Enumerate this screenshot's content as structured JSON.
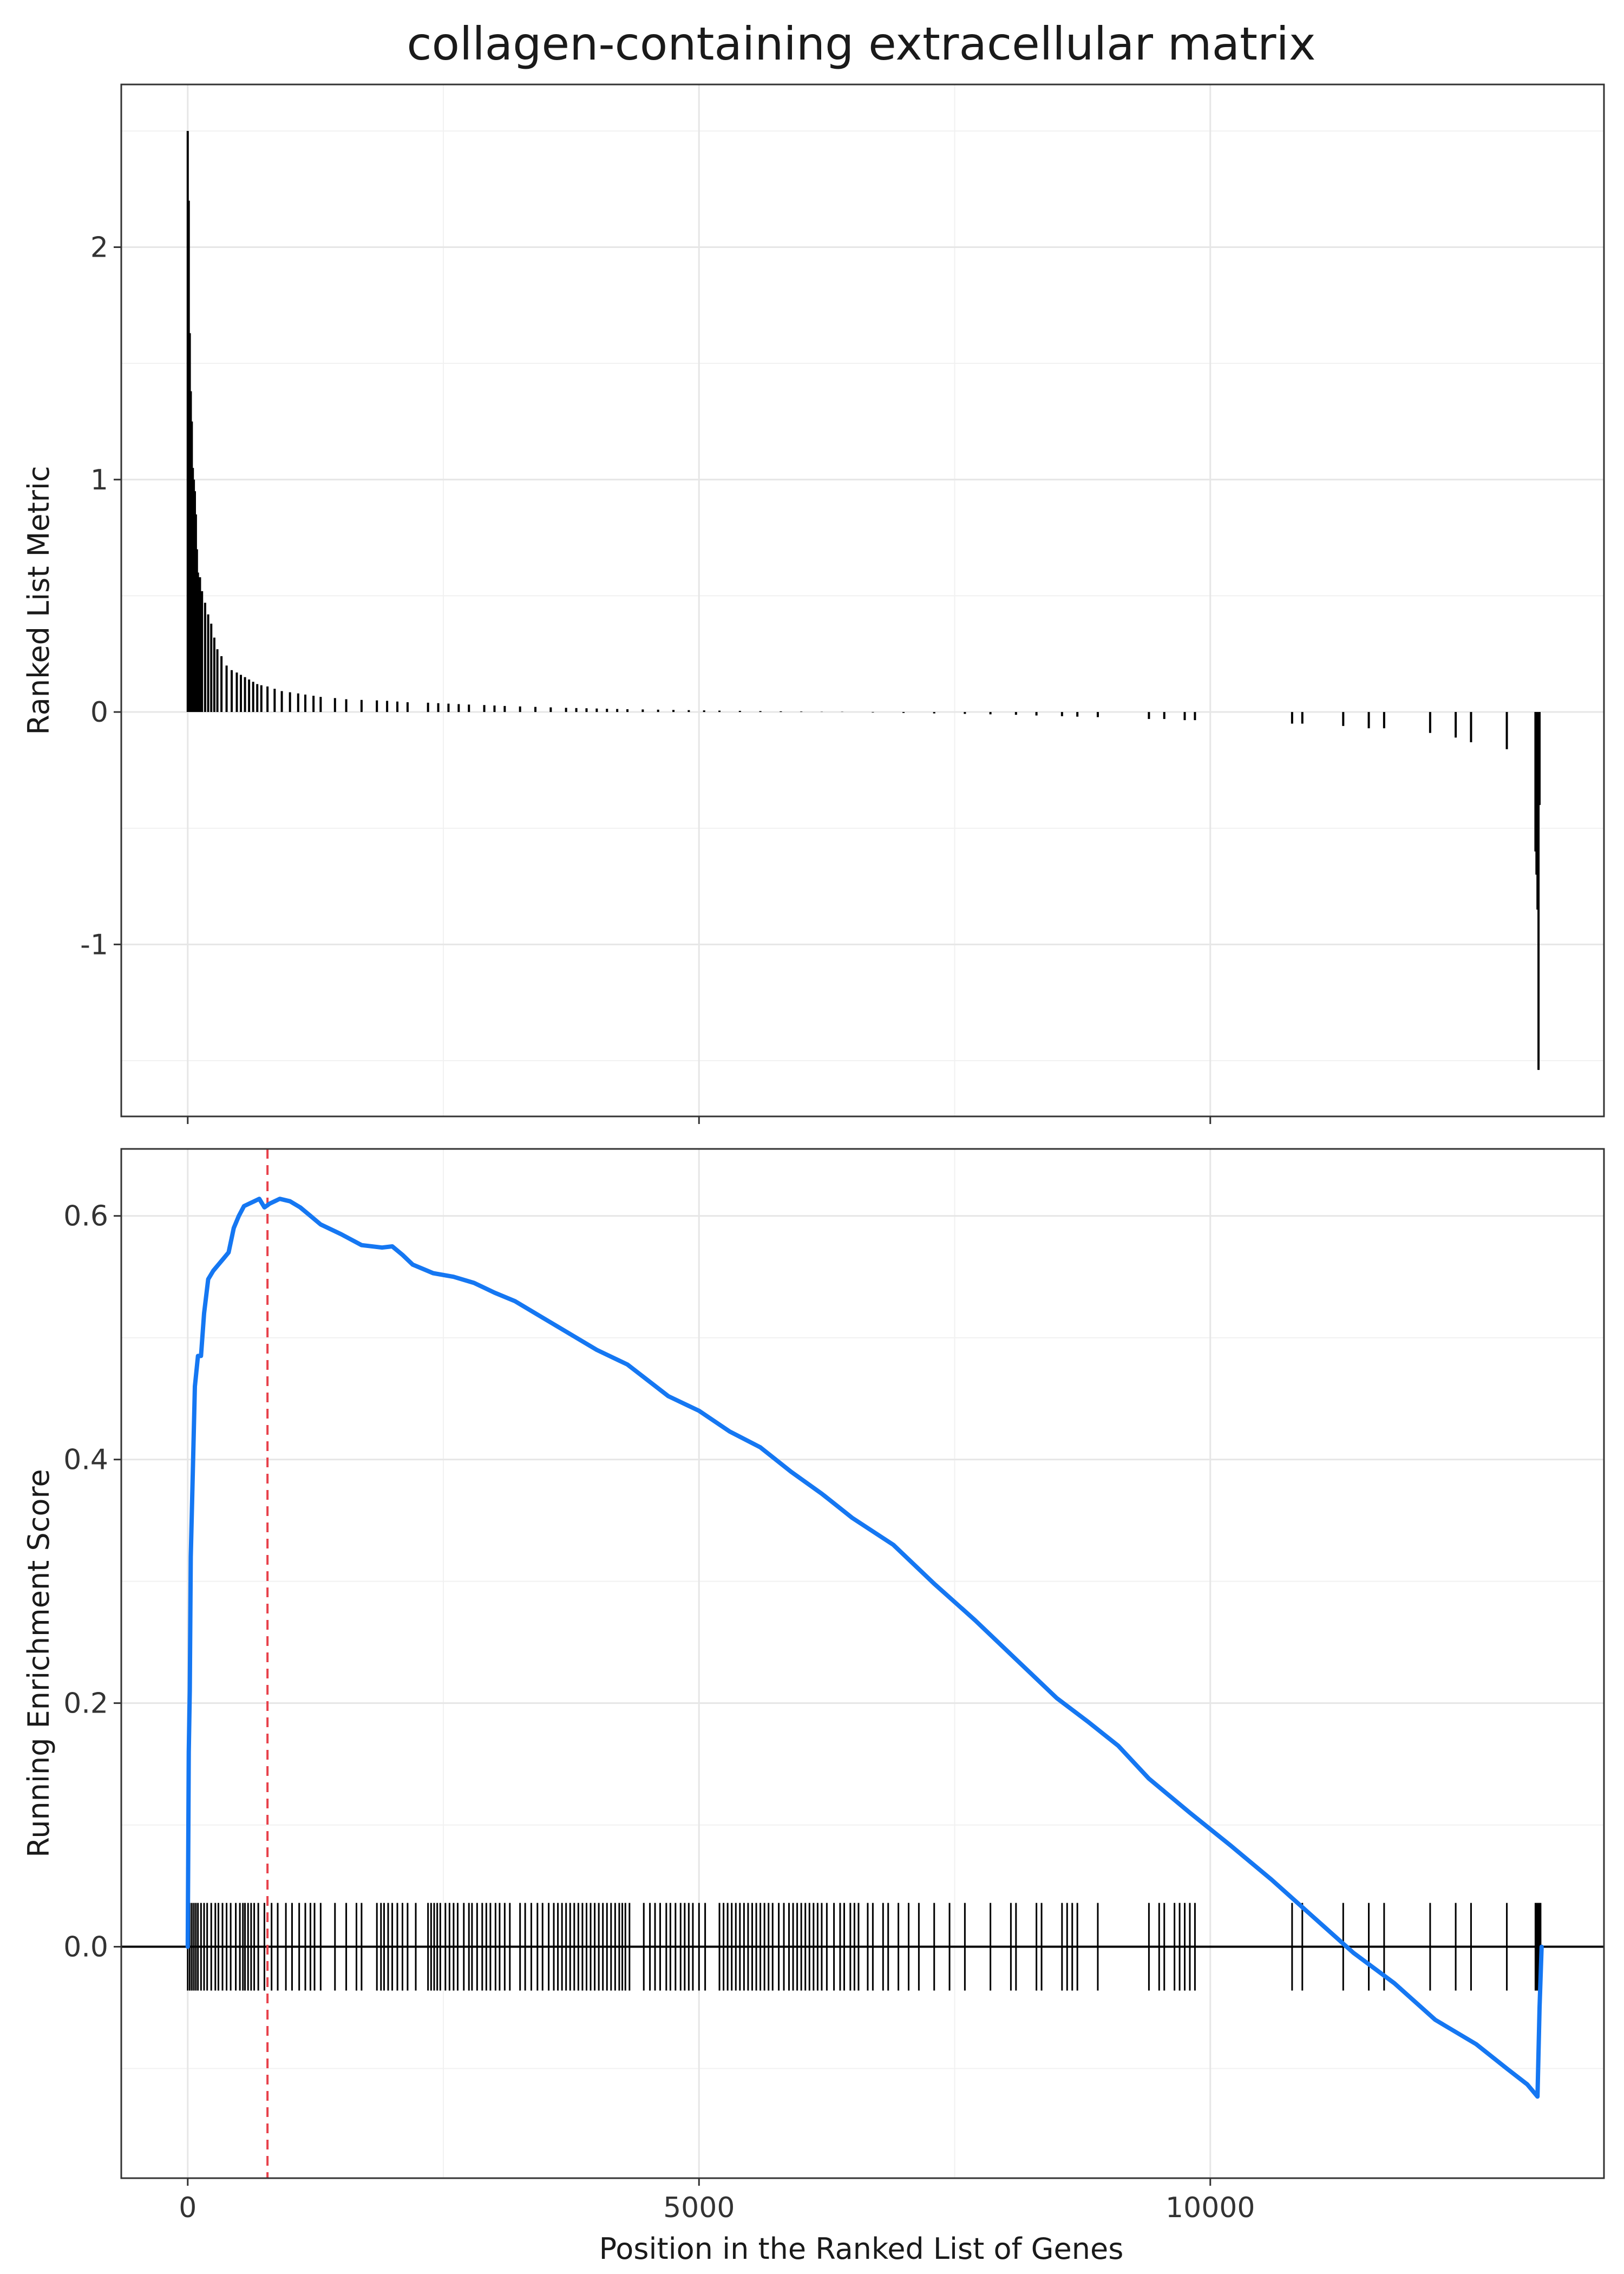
{
  "chart_data": [
    {
      "type": "bar",
      "title": "collagen-containing extracellular matrix",
      "ylabel": "Ranked List Metric",
      "xlabel": "",
      "xlim": [
        -650,
        13850
      ],
      "ylim": [
        -1.74,
        2.7
      ],
      "yticks": [
        -1,
        0,
        1,
        2
      ],
      "grid": true,
      "bar_color": "#000000",
      "description_of_series": "ranked list metric at selected gene positions",
      "x": [
        0,
        10,
        20,
        30,
        40,
        50,
        60,
        70,
        80,
        90,
        100,
        120,
        140,
        170,
        200,
        230,
        260,
        290,
        330,
        380,
        430,
        480,
        520,
        560,
        600,
        640,
        680,
        720,
        780,
        850,
        920,
        1000,
        1080,
        1150,
        1230,
        1300,
        1440,
        1550,
        1700,
        1850,
        1950,
        2050,
        2150,
        2350,
        2450,
        2550,
        2650,
        2750,
        2900,
        3000,
        3100,
        3250,
        3400,
        3550,
        3700,
        3800,
        3900,
        4000,
        4100,
        4200,
        4300,
        4450,
        4600,
        4750,
        4900,
        5050,
        5200,
        5400,
        5600,
        5800,
        6000,
        6200,
        6400,
        6700,
        7000,
        7300,
        7600,
        7850,
        8100,
        8300,
        8550,
        8700,
        8900,
        9400,
        9550,
        9750,
        9850,
        10800,
        10900,
        11300,
        11550,
        11700,
        12150,
        12400,
        12550,
        12900,
        13180,
        13190,
        13200,
        13210,
        13220
      ],
      "values": [
        2.5,
        2.2,
        1.63,
        1.38,
        1.25,
        1.05,
        1.0,
        0.95,
        0.85,
        0.7,
        0.6,
        0.58,
        0.52,
        0.47,
        0.42,
        0.38,
        0.32,
        0.27,
        0.24,
        0.2,
        0.18,
        0.17,
        0.16,
        0.15,
        0.14,
        0.13,
        0.12,
        0.115,
        0.11,
        0.1,
        0.09,
        0.085,
        0.08,
        0.075,
        0.07,
        0.065,
        0.06,
        0.055,
        0.052,
        0.05,
        0.048,
        0.045,
        0.042,
        0.04,
        0.038,
        0.036,
        0.034,
        0.032,
        0.03,
        0.028,
        0.026,
        0.024,
        0.022,
        0.02,
        0.018,
        0.017,
        0.016,
        0.015,
        0.014,
        0.013,
        0.012,
        0.011,
        0.01,
        0.009,
        0.008,
        0.007,
        0.006,
        0.005,
        0.004,
        0.003,
        0.002,
        0.001,
        0.001,
        -0.002,
        -0.004,
        -0.006,
        -0.008,
        -0.01,
        -0.012,
        -0.015,
        -0.018,
        -0.02,
        -0.022,
        -0.03,
        -0.03,
        -0.035,
        -0.035,
        -0.05,
        -0.05,
        -0.06,
        -0.07,
        -0.07,
        -0.09,
        -0.11,
        -0.13,
        -0.16,
        -0.6,
        -0.7,
        -0.85,
        -1.54,
        -0.4
      ]
    },
    {
      "type": "line",
      "title": "",
      "xlabel": "Position in the Ranked List of Genes",
      "ylabel": "Running Enrichment Score",
      "xlim": [
        -650,
        13850
      ],
      "ylim": [
        -0.19,
        0.655
      ],
      "xticks": [
        0,
        5000,
        10000
      ],
      "yticks": [
        0.0,
        0.2,
        0.4,
        0.6
      ],
      "grid": true,
      "line_color": "#1577f2",
      "peak_line_color": "#e8404a",
      "zero_line": true,
      "series": [
        {
          "x": [
            0,
            10,
            20,
            30,
            50,
            70,
            100,
            130,
            160,
            200,
            250,
            300,
            350,
            400,
            450,
            500,
            550,
            600,
            650,
            700,
            750,
            800,
            900,
            1000,
            1100,
            1200,
            1300,
            1500,
            1700,
            1900,
            2000,
            2100,
            2200,
            2400,
            2600,
            2800,
            3000,
            3200,
            3400,
            3600,
            3800,
            4000,
            4300,
            4500,
            4700,
            5000,
            5300,
            5600,
            5900,
            6200,
            6500,
            6900,
            7300,
            7700,
            8100,
            8500,
            8800,
            9100,
            9400,
            9800,
            10200,
            10600,
            11000,
            11400,
            11800,
            12200,
            12400,
            12600,
            12900,
            13100,
            13200,
            13220,
            13240
          ],
          "values": [
            0.0,
            0.16,
            0.21,
            0.32,
            0.39,
            0.46,
            0.485,
            0.485,
            0.52,
            0.548,
            0.555,
            0.56,
            0.565,
            0.57,
            0.59,
            0.6,
            0.608,
            0.61,
            0.612,
            0.614,
            0.607,
            0.61,
            0.614,
            0.612,
            0.607,
            0.6,
            0.593,
            0.585,
            0.576,
            0.574,
            0.575,
            0.568,
            0.56,
            0.553,
            0.55,
            0.545,
            0.537,
            0.53,
            0.52,
            0.51,
            0.5,
            0.49,
            0.478,
            0.465,
            0.452,
            0.44,
            0.423,
            0.41,
            0.39,
            0.372,
            0.352,
            0.33,
            0.298,
            0.268,
            0.236,
            0.204,
            0.185,
            0.165,
            0.138,
            0.11,
            0.083,
            0.055,
            0.025,
            -0.005,
            -0.03,
            -0.06,
            -0.07,
            -0.08,
            -0.1,
            -0.113,
            -0.123,
            -0.05,
            0.0
          ]
        }
      ],
      "peak_x": 780,
      "hit_positions": [
        0,
        20,
        40,
        60,
        80,
        100,
        130,
        160,
        190,
        230,
        270,
        300,
        340,
        380,
        420,
        470,
        510,
        540,
        560,
        590,
        620,
        650,
        690,
        750,
        820,
        880,
        960,
        1020,
        1090,
        1150,
        1200,
        1240,
        1300,
        1440,
        1550,
        1650,
        1700,
        1850,
        1890,
        1920,
        1960,
        2000,
        2050,
        2100,
        2150,
        2230,
        2350,
        2380,
        2410,
        2440,
        2470,
        2520,
        2560,
        2600,
        2640,
        2700,
        2750,
        2780,
        2830,
        2880,
        2920,
        2960,
        3010,
        3050,
        3100,
        3150,
        3250,
        3300,
        3360,
        3420,
        3470,
        3530,
        3580,
        3620,
        3660,
        3700,
        3740,
        3780,
        3820,
        3860,
        3900,
        3940,
        3980,
        4020,
        4060,
        4100,
        4140,
        4180,
        4220,
        4250,
        4280,
        4320,
        4460,
        4520,
        4570,
        4620,
        4680,
        4720,
        4770,
        4820,
        4860,
        4900,
        4940,
        5000,
        5060,
        5200,
        5240,
        5280,
        5320,
        5360,
        5400,
        5440,
        5480,
        5520,
        5560,
        5600,
        5640,
        5680,
        5720,
        5780,
        5830,
        5880,
        5920,
        5960,
        6000,
        6040,
        6080,
        6120,
        6160,
        6200,
        6250,
        6320,
        6380,
        6420,
        6480,
        6520,
        6560,
        6650,
        6700,
        6800,
        6850,
        6950,
        7050,
        7150,
        7300,
        7450,
        7600,
        7850,
        8050,
        8100,
        8300,
        8350,
        8550,
        8600,
        8650,
        8700,
        8900,
        9400,
        9500,
        9550,
        9650,
        9700,
        9750,
        9800,
        9850,
        10800,
        10900,
        11300,
        11550,
        11700,
        12150,
        12400,
        12550,
        12900,
        13180,
        13190,
        13200,
        13210,
        13220,
        13230
      ]
    }
  ]
}
